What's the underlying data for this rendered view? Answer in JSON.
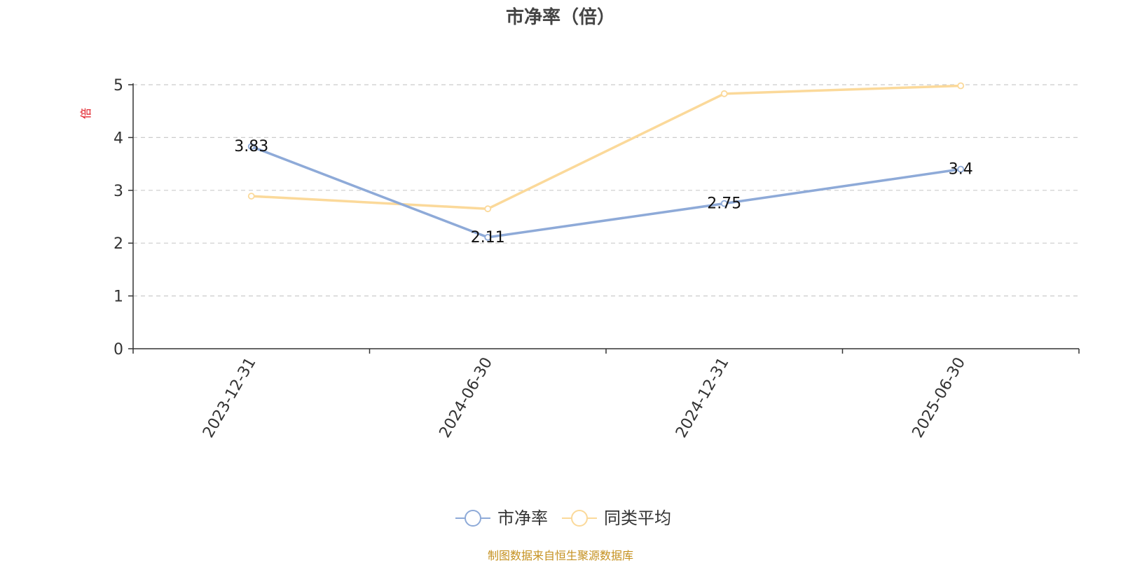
{
  "chart_data": {
    "type": "line",
    "title": "市净率（倍）",
    "ylabel": "倍",
    "xlabel": "",
    "categories": [
      "2023-12-31",
      "2024-06-30",
      "2024-12-31",
      "2025-06-30"
    ],
    "yticks": [
      0,
      1,
      2,
      3,
      4,
      5
    ],
    "ylim": [
      0,
      5
    ],
    "grid": true,
    "legend_position": "bottom-center",
    "series": [
      {
        "name": "市净率",
        "color": "#8eaad8",
        "values": [
          3.83,
          2.11,
          2.75,
          3.4
        ],
        "labels": [
          "3.83",
          "2.11",
          "2.75",
          "3.4"
        ],
        "show_labels": true
      },
      {
        "name": "同类平均",
        "color": "#fbd99a",
        "values": [
          2.89,
          2.65,
          4.83,
          4.98
        ],
        "show_labels": false
      }
    ]
  },
  "source_note": "制图数据来自恒生聚源数据库",
  "colors": {
    "axis": "#333333",
    "grid": "#cccccc",
    "ylabel": "#e0161f",
    "title": "#444444",
    "source_note": "#c59120"
  }
}
